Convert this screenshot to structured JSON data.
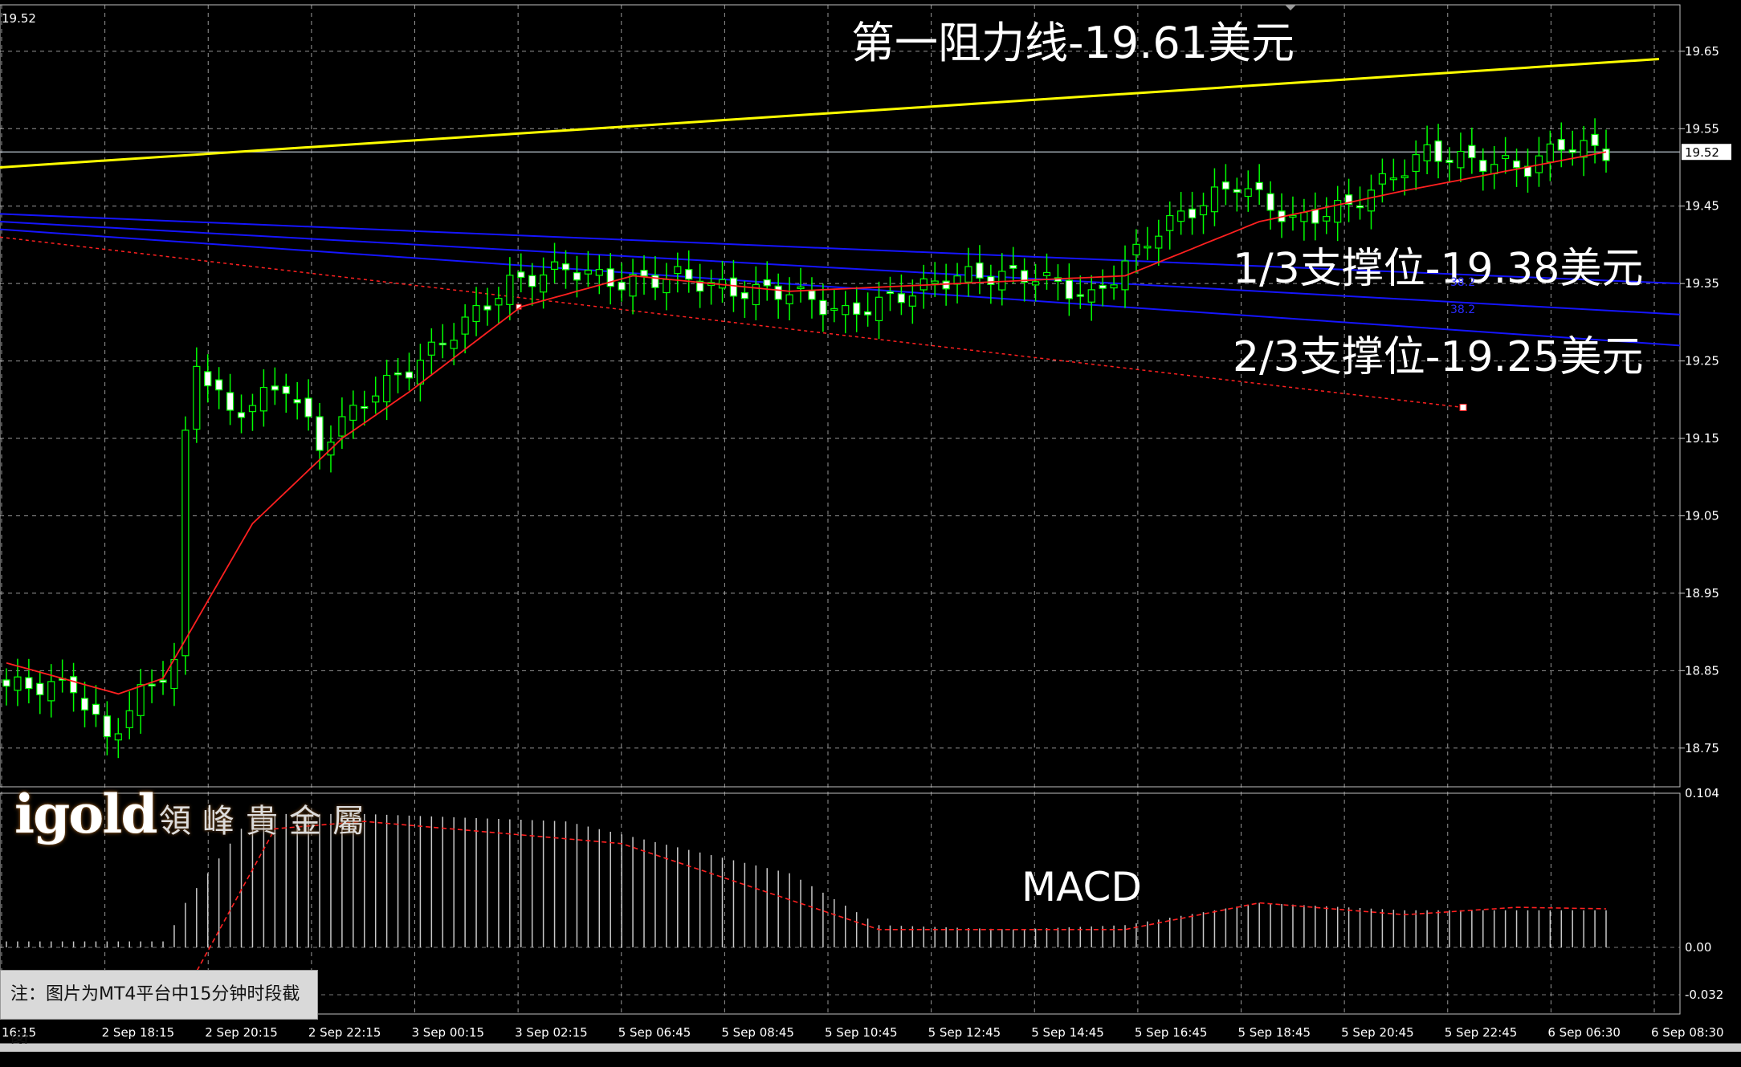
{
  "symbol_price_label": "19.52",
  "annotations": {
    "resistance": "第一阻力线-19.61美元",
    "support_1_3": "1/3支撑位-19.38美元",
    "support_2_3": "2/3支撑位-19.25美元",
    "macd_label": "MACD",
    "fib_small_1": "38.2",
    "fib_small_2": "38.2"
  },
  "logo": {
    "brand": "igold",
    "name_cn": "領峰貴金屬"
  },
  "note": "注：图片为MT4平台中15分钟时段截图",
  "colors": {
    "background": "#000000",
    "grid": "#c8c8c8",
    "bull_candle": "#00ff00",
    "bear_candle_body": "#ffffff",
    "moving_average": "#ff2020",
    "resistance_line": "#ffff00",
    "channel_lines": "#1515ff",
    "trend_dotted": "#ff2020",
    "macd_histogram": "#c8c8c8",
    "macd_signal": "#ff2020"
  },
  "chart_data": {
    "type": "candlestick",
    "price_axis": {
      "ticks": [
        "19.65",
        "19.55",
        "19.45",
        "19.35",
        "19.25",
        "19.15",
        "19.05",
        "18.95",
        "18.85",
        "18.75"
      ],
      "ylim": [
        18.7,
        19.71
      ],
      "current_price": 19.52,
      "current_price_label": "19.52"
    },
    "macd_axis": {
      "ticks": [
        "0.104",
        "0.00",
        "-0.032"
      ],
      "ylim": [
        -0.045,
        0.104
      ]
    },
    "time_axis": {
      "ticks": [
        "16:15",
        "2 Sep 18:15",
        "2 Sep 20:15",
        "2 Sep 22:15",
        "3 Sep 00:15",
        "3 Sep 02:15",
        "5 Sep 06:45",
        "5 Sep 08:45",
        "5 Sep 10:45",
        "5 Sep 12:45",
        "5 Sep 14:45",
        "5 Sep 16:45",
        "5 Sep 18:45",
        "5 Sep 20:45",
        "5 Sep 22:45",
        "6 Sep 06:30",
        "6 Sep 08:30"
      ]
    },
    "lines": {
      "resistance": {
        "start": 19.5,
        "end": 19.64
      },
      "channel": [
        {
          "start": 19.44,
          "end": 19.35
        },
        {
          "start": 19.43,
          "end": 19.31
        },
        {
          "start": 19.42,
          "end": 19.27
        }
      ],
      "dotted_trend": {
        "start": 19.41,
        "end": 19.19
      }
    },
    "candle_count": 144,
    "candle_anchors": [
      [
        0,
        18.83
      ],
      [
        6,
        18.83
      ],
      [
        9,
        18.76
      ],
      [
        12,
        18.82
      ],
      [
        15,
        18.86
      ],
      [
        16,
        19.15
      ],
      [
        17,
        19.25
      ],
      [
        20,
        19.18
      ],
      [
        25,
        19.22
      ],
      [
        28,
        19.14
      ],
      [
        32,
        19.2
      ],
      [
        37,
        19.25
      ],
      [
        45,
        19.35
      ],
      [
        50,
        19.37
      ],
      [
        55,
        19.35
      ],
      [
        60,
        19.36
      ],
      [
        65,
        19.34
      ],
      [
        70,
        19.34
      ],
      [
        75,
        19.31
      ],
      [
        85,
        19.36
      ],
      [
        92,
        19.36
      ],
      [
        97,
        19.33
      ],
      [
        103,
        19.42
      ],
      [
        110,
        19.48
      ],
      [
        115,
        19.43
      ],
      [
        120,
        19.45
      ],
      [
        127,
        19.52
      ],
      [
        130,
        19.51
      ],
      [
        136,
        19.5
      ],
      [
        139,
        19.53
      ],
      [
        143,
        19.52
      ]
    ],
    "ma_anchors": [
      [
        0,
        18.86
      ],
      [
        10,
        18.82
      ],
      [
        14,
        18.84
      ],
      [
        22,
        19.04
      ],
      [
        30,
        19.15
      ],
      [
        36,
        19.21
      ],
      [
        46,
        19.32
      ],
      [
        56,
        19.36
      ],
      [
        70,
        19.34
      ],
      [
        85,
        19.35
      ],
      [
        100,
        19.36
      ],
      [
        112,
        19.43
      ],
      [
        125,
        19.47
      ],
      [
        143,
        19.52
      ]
    ],
    "macd_hist_anchors": [
      [
        0,
        0.0
      ],
      [
        14,
        0.0
      ],
      [
        16,
        0.03
      ],
      [
        22,
        0.09
      ],
      [
        32,
        0.09
      ],
      [
        50,
        0.085
      ],
      [
        70,
        0.05
      ],
      [
        78,
        0.015
      ],
      [
        90,
        0.012
      ],
      [
        100,
        0.015
      ],
      [
        112,
        0.03
      ],
      [
        125,
        0.025
      ],
      [
        143,
        0.025
      ]
    ],
    "macd_signal_anchors": [
      [
        16,
        -0.03
      ],
      [
        24,
        0.08
      ],
      [
        32,
        0.085
      ],
      [
        55,
        0.07
      ],
      [
        78,
        0.012
      ],
      [
        100,
        0.012
      ],
      [
        112,
        0.03
      ],
      [
        125,
        0.022
      ],
      [
        135,
        0.027
      ],
      [
        143,
        0.026
      ]
    ],
    "grid": true
  }
}
